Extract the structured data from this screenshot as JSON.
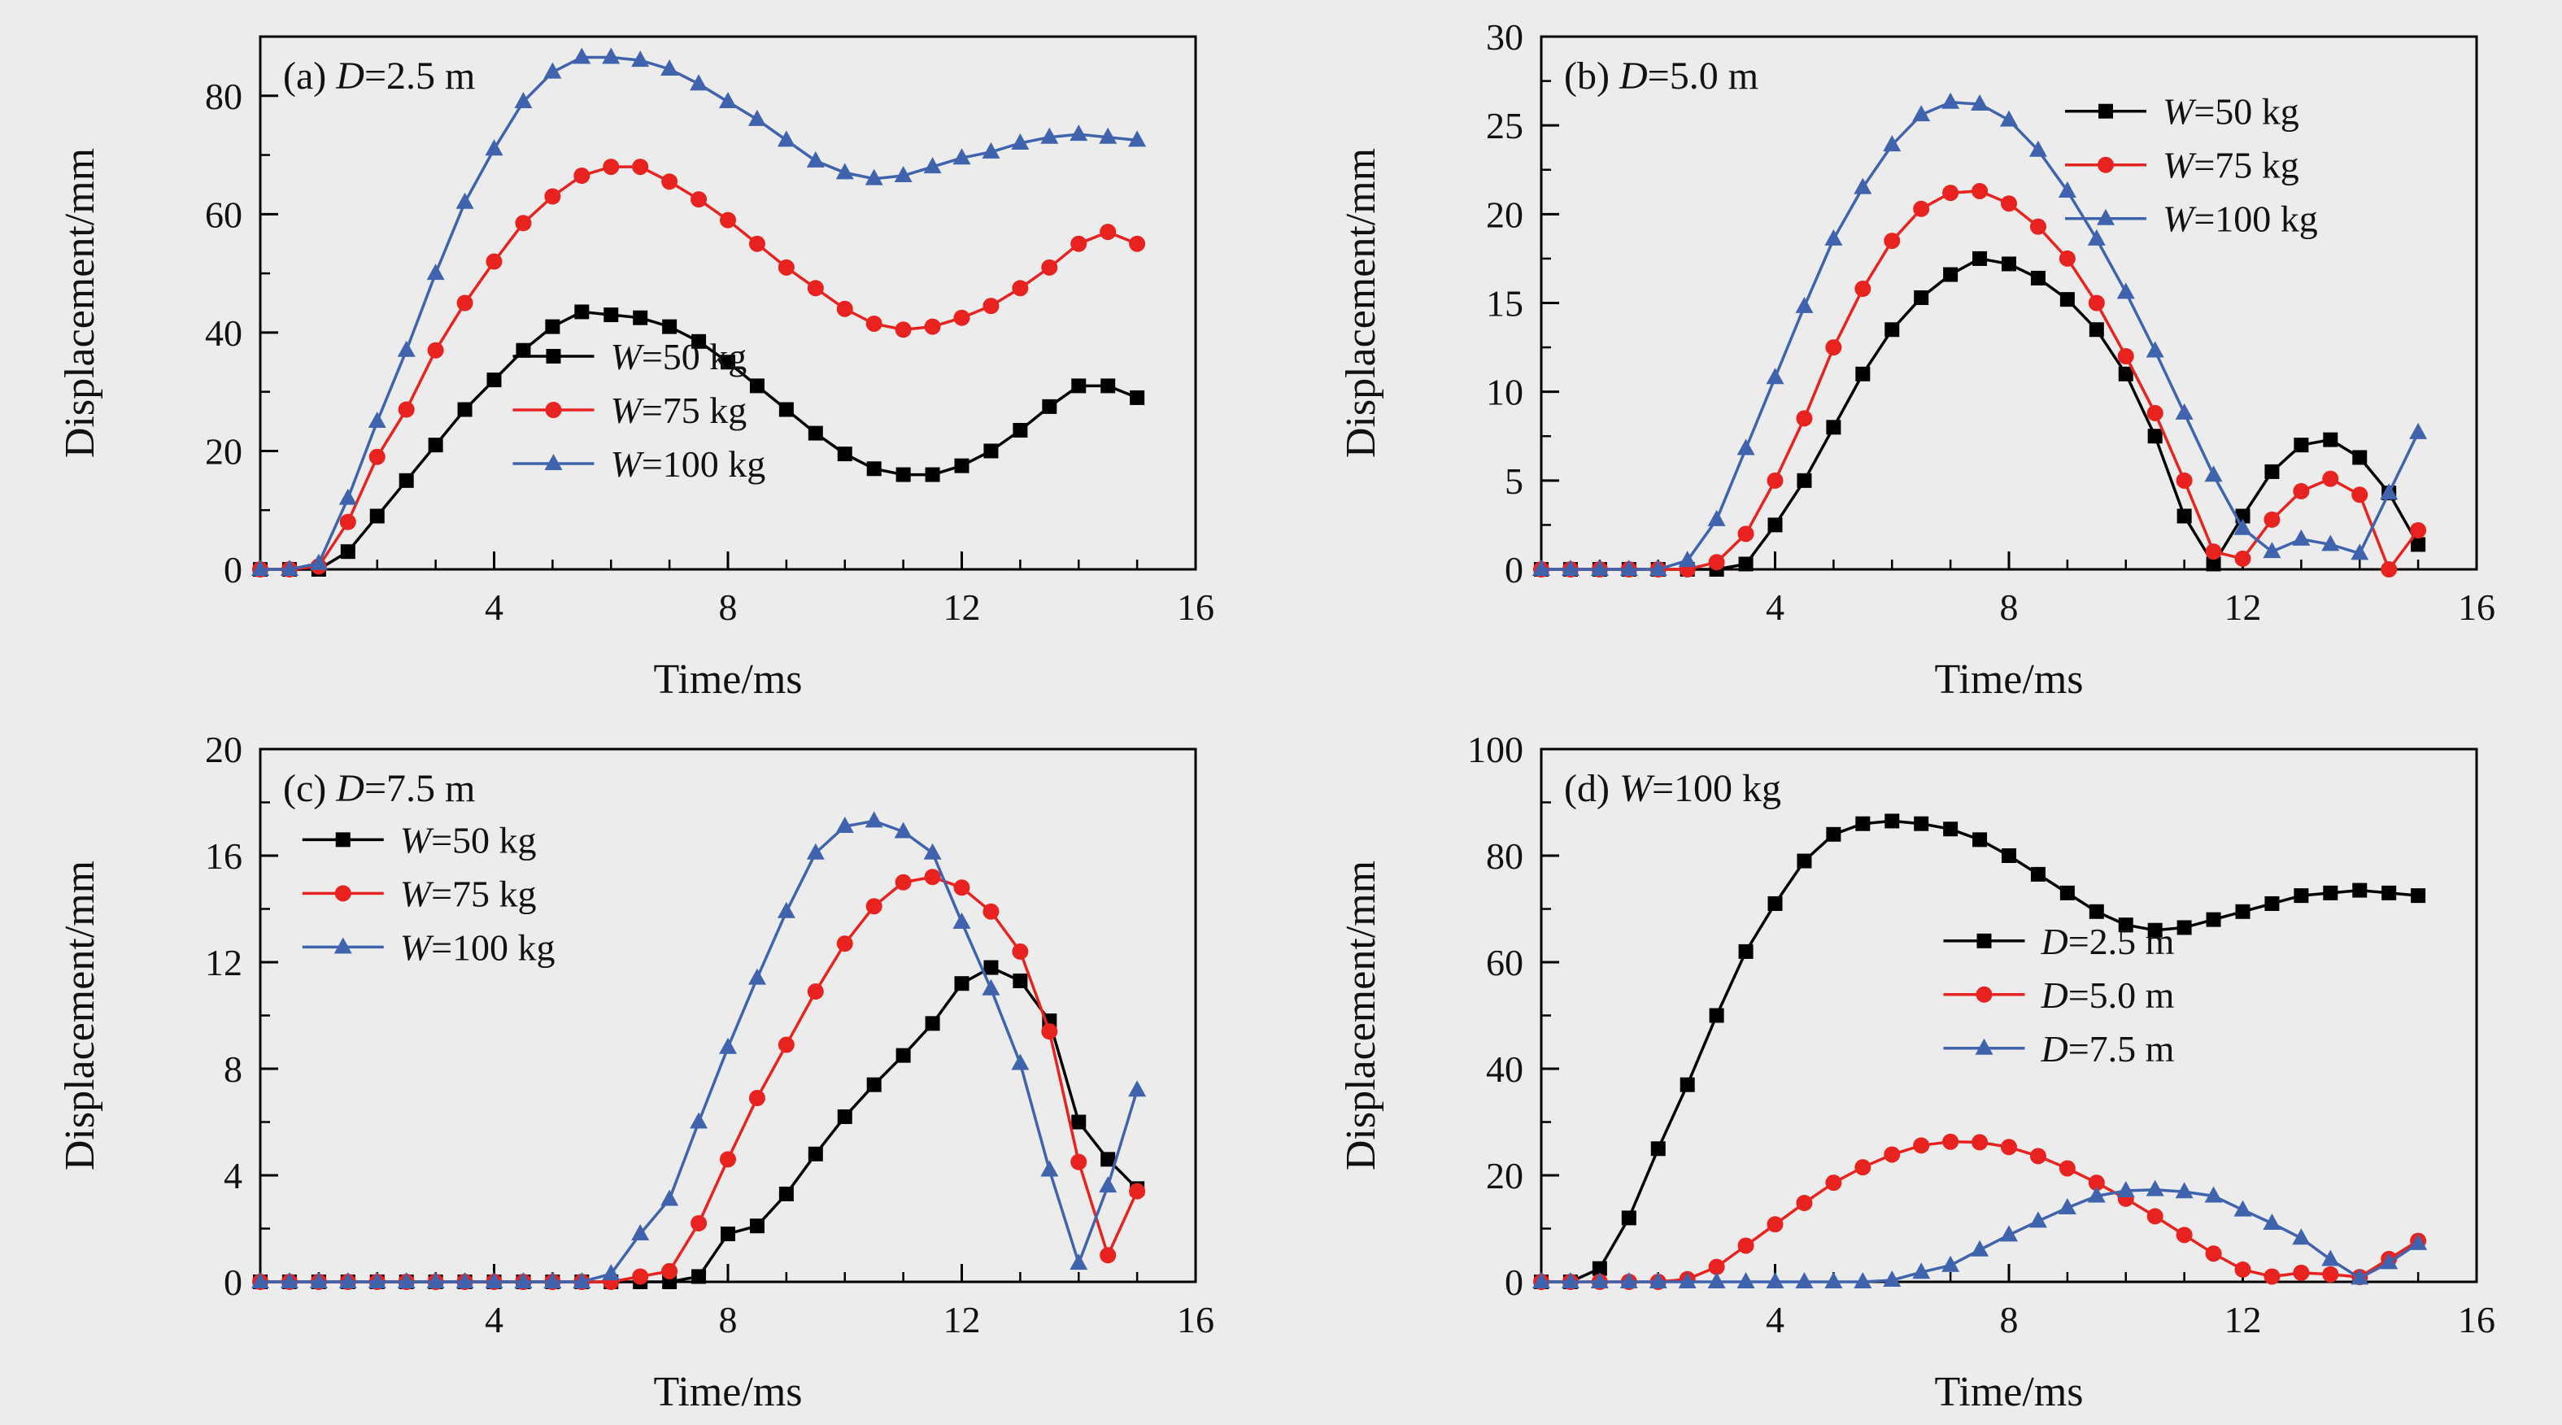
{
  "page": {
    "background": "#ececec",
    "black": "#000000",
    "red": "#e8231f",
    "blue": "#3f63ad"
  },
  "chart_data": [
    {
      "id": "a",
      "type": "line",
      "panel": {
        "prefix": "(a) ",
        "var": "D",
        "rest": "=2.5 m"
      },
      "xlabel": "Time/ms",
      "ylabel": "Displacement/mm",
      "xlim": [
        0,
        16
      ],
      "ylim": [
        0,
        90
      ],
      "xticks": [
        4,
        8,
        12,
        16
      ],
      "yticks": [
        0,
        20,
        40,
        60,
        80
      ],
      "x_minor_step": 1,
      "y_minor_step": 10,
      "legend": {
        "fx": 0.27,
        "fy": 0.6,
        "position": "lower-center-left"
      },
      "x": [
        0,
        0.5,
        1,
        1.5,
        2,
        2.5,
        3,
        3.5,
        4,
        4.5,
        5,
        5.5,
        6,
        6.5,
        7,
        7.5,
        8,
        8.5,
        9,
        9.5,
        10,
        10.5,
        11,
        11.5,
        12,
        12.5,
        13,
        13.5,
        14,
        14.5,
        15
      ],
      "series": [
        {
          "label_var": "W",
          "label_rest": "=50 kg",
          "color": "#000000",
          "marker": "square",
          "values": [
            0,
            0,
            0,
            3,
            9,
            15,
            21,
            27,
            32,
            37,
            41,
            43.5,
            43,
            42.5,
            41,
            38.5,
            35,
            31,
            27,
            23,
            19.5,
            17,
            16,
            16,
            17.5,
            20,
            23.5,
            27.5,
            31,
            31,
            29
          ]
        },
        {
          "label_var": "W",
          "label_rest": "=75 kg",
          "color": "#e8231f",
          "marker": "circle",
          "values": [
            0,
            0,
            0.5,
            8,
            19,
            27,
            37,
            45,
            52,
            58.5,
            63,
            66.5,
            68,
            68,
            65.5,
            62.5,
            59,
            55,
            51,
            47.5,
            44,
            41.5,
            40.5,
            41,
            42.5,
            44.5,
            47.5,
            51,
            55,
            57,
            55
          ]
        },
        {
          "label_var": "W",
          "label_rest": "=100 kg",
          "color": "#3f63ad",
          "marker": "triangle",
          "values": [
            0,
            0,
            1,
            12,
            25,
            37,
            50,
            62,
            71,
            79,
            84,
            86.5,
            86.5,
            86,
            84.5,
            82,
            79,
            76,
            72.5,
            69,
            67,
            66,
            66.5,
            68,
            69.5,
            70.5,
            72,
            73,
            73.5,
            73,
            72.5
          ]
        }
      ]
    },
    {
      "id": "b",
      "type": "line",
      "panel": {
        "prefix": "(b) ",
        "var": "D",
        "rest": "=5.0 m"
      },
      "xlabel": "Time/ms",
      "ylabel": "Displacement/mm",
      "xlim": [
        0,
        16
      ],
      "ylim": [
        0,
        30
      ],
      "xticks": [
        4,
        8,
        12,
        16
      ],
      "yticks": [
        0,
        5,
        10,
        15,
        20,
        25,
        30
      ],
      "x_minor_step": 1,
      "y_minor_step": 2.5,
      "legend": {
        "fx": 0.56,
        "fy": 0.14,
        "position": "upper-right"
      },
      "x": [
        0,
        0.5,
        1,
        1.5,
        2,
        2.5,
        3,
        3.5,
        4,
        4.5,
        5,
        5.5,
        6,
        6.5,
        7,
        7.5,
        8,
        8.5,
        9,
        9.5,
        10,
        10.5,
        11,
        11.5,
        12,
        12.5,
        13,
        13.5,
        14,
        14.5,
        15
      ],
      "series": [
        {
          "label_var": "W",
          "label_rest": "=50 kg",
          "color": "#000000",
          "marker": "square",
          "values": [
            0,
            0,
            0,
            0,
            0,
            0,
            0,
            0.3,
            2.5,
            5,
            8,
            11,
            13.5,
            15.3,
            16.6,
            17.5,
            17.2,
            16.4,
            15.2,
            13.5,
            11,
            7.5,
            3,
            0.3,
            3,
            5.5,
            7,
            7.3,
            6.3,
            4.3,
            1.4
          ]
        },
        {
          "label_var": "W",
          "label_rest": "=75 kg",
          "color": "#e8231f",
          "marker": "circle",
          "values": [
            0,
            0,
            0,
            0,
            0,
            0,
            0.4,
            2,
            5,
            8.5,
            12.5,
            15.8,
            18.5,
            20.3,
            21.2,
            21.3,
            20.6,
            19.3,
            17.5,
            15,
            12,
            8.8,
            5,
            1,
            0.6,
            2.8,
            4.4,
            5.1,
            4.2,
            0,
            2.2
          ]
        },
        {
          "label_var": "W",
          "label_rest": "=100 kg",
          "color": "#3f63ad",
          "marker": "triangle",
          "values": [
            0,
            0,
            0,
            0,
            0,
            0.5,
            2.8,
            6.8,
            10.8,
            14.8,
            18.6,
            21.5,
            23.9,
            25.6,
            26.3,
            26.2,
            25.3,
            23.6,
            21.3,
            18.6,
            15.6,
            12.3,
            8.8,
            5.3,
            2.3,
            1,
            1.7,
            1.4,
            0.9,
            4.3,
            7.7
          ]
        }
      ]
    },
    {
      "id": "c",
      "type": "line",
      "panel": {
        "prefix": "(c) ",
        "var": "D",
        "rest": "=7.5 m"
      },
      "xlabel": "Time/ms",
      "ylabel": "Displacement/mm",
      "xlim": [
        0,
        16
      ],
      "ylim": [
        0,
        20
      ],
      "xticks": [
        4,
        8,
        12,
        16
      ],
      "yticks": [
        0,
        4,
        8,
        12,
        16,
        20
      ],
      "x_minor_step": 1,
      "y_minor_step": 2,
      "legend": {
        "fx": 0.045,
        "fy": 0.17,
        "position": "upper-left"
      },
      "x": [
        0,
        0.5,
        1,
        1.5,
        2,
        2.5,
        3,
        3.5,
        4,
        4.5,
        5,
        5.5,
        6,
        6.5,
        7,
        7.5,
        8,
        8.5,
        9,
        9.5,
        10,
        10.5,
        11,
        11.5,
        12,
        12.5,
        13,
        13.5,
        14,
        14.5,
        15
      ],
      "series": [
        {
          "label_var": "W",
          "label_rest": "=50 kg",
          "color": "#000000",
          "marker": "square",
          "values": [
            0,
            0,
            0,
            0,
            0,
            0,
            0,
            0,
            0,
            0,
            0,
            0,
            0,
            0,
            0,
            0.2,
            1.8,
            2.1,
            3.3,
            4.8,
            6.2,
            7.4,
            8.5,
            9.7,
            11.2,
            11.8,
            11.3,
            9.8,
            6,
            4.6,
            3.5
          ]
        },
        {
          "label_var": "W",
          "label_rest": "=75 kg",
          "color": "#e8231f",
          "marker": "circle",
          "values": [
            0,
            0,
            0,
            0,
            0,
            0,
            0,
            0,
            0,
            0,
            0,
            0,
            0,
            0.2,
            0.4,
            2.2,
            4.6,
            6.9,
            8.9,
            10.9,
            12.7,
            14.1,
            15,
            15.2,
            14.8,
            13.9,
            12.4,
            9.4,
            4.5,
            1,
            3.4
          ]
        },
        {
          "label_var": "W",
          "label_rest": "=100 kg",
          "color": "#3f63ad",
          "marker": "triangle",
          "values": [
            0,
            0,
            0,
            0,
            0,
            0,
            0,
            0,
            0,
            0,
            0,
            0,
            0.3,
            1.8,
            3.1,
            6,
            8.8,
            11.4,
            13.9,
            16.1,
            17.1,
            17.3,
            16.9,
            16.1,
            13.5,
            11,
            8.2,
            4.2,
            0.7,
            3.6,
            7.2
          ]
        }
      ]
    },
    {
      "id": "d",
      "type": "line",
      "panel": {
        "prefix": "(d) ",
        "var": "W",
        "rest": "=100 kg"
      },
      "xlabel": "Time/ms",
      "ylabel": "Displacement/mm",
      "xlim": [
        0,
        16
      ],
      "ylim": [
        0,
        100
      ],
      "xticks": [
        4,
        8,
        12,
        16
      ],
      "yticks": [
        0,
        20,
        40,
        60,
        80,
        100
      ],
      "x_minor_step": 1,
      "y_minor_step": 10,
      "legend": {
        "fx": 0.43,
        "fy": 0.36,
        "position": "middle-right"
      },
      "x": [
        0,
        0.5,
        1,
        1.5,
        2,
        2.5,
        3,
        3.5,
        4,
        4.5,
        5,
        5.5,
        6,
        6.5,
        7,
        7.5,
        8,
        8.5,
        9,
        9.5,
        10,
        10.5,
        11,
        11.5,
        12,
        12.5,
        13,
        13.5,
        14,
        14.5,
        15
      ],
      "series": [
        {
          "label_var": "D",
          "label_rest": "=2.5 m",
          "color": "#000000",
          "marker": "square",
          "values": [
            0,
            0,
            2.5,
            12,
            25,
            37,
            50,
            62,
            71,
            79,
            84,
            86,
            86.5,
            86,
            85,
            83,
            80,
            76.5,
            73,
            69.5,
            67,
            66,
            66.5,
            68,
            69.5,
            71,
            72.5,
            73,
            73.5,
            73,
            72.5
          ]
        },
        {
          "label_var": "D",
          "label_rest": "=5.0 m",
          "color": "#e8231f",
          "marker": "circle",
          "values": [
            0,
            0,
            0,
            0,
            0,
            0.5,
            2.8,
            6.8,
            10.8,
            14.8,
            18.6,
            21.5,
            23.9,
            25.6,
            26.3,
            26.2,
            25.3,
            23.6,
            21.3,
            18.6,
            15.6,
            12.3,
            8.8,
            5.3,
            2.3,
            1,
            1.7,
            1.4,
            0.9,
            4.3,
            7.7
          ]
        },
        {
          "label_var": "D",
          "label_rest": "=7.5 m",
          "color": "#3f63ad",
          "marker": "triangle",
          "values": [
            0,
            0,
            0,
            0,
            0,
            0,
            0,
            0,
            0,
            0,
            0,
            0,
            0.3,
            1.8,
            3.1,
            6,
            8.8,
            11.4,
            13.9,
            16.1,
            17.1,
            17.3,
            16.9,
            16.1,
            13.5,
            11,
            8.2,
            4.2,
            0.7,
            3.6,
            7.2
          ]
        }
      ]
    }
  ]
}
